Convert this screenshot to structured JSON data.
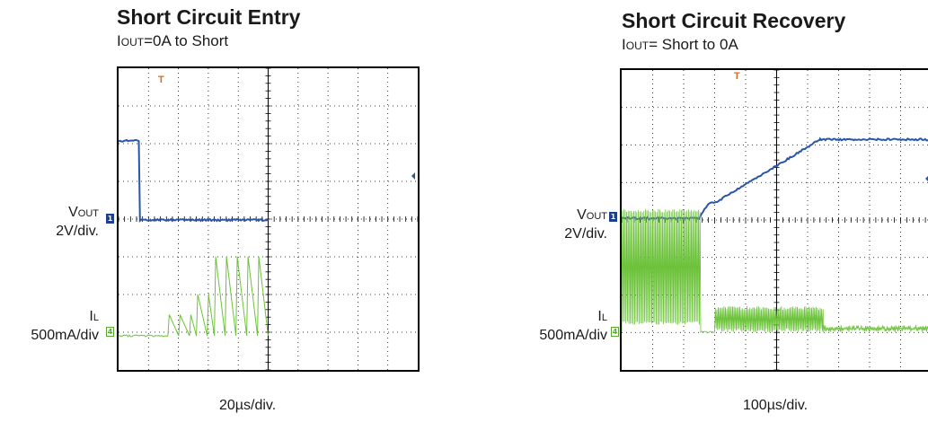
{
  "panels": [
    {
      "title": "Short Circuit Entry",
      "subtitle_i": "I",
      "subtitle_sub": "OUT",
      "subtitle_rest": "=0A to Short",
      "vout_label_main": "V",
      "vout_label_sub": "OUT",
      "vout_scale": "2V/div.",
      "il_label_main": "I",
      "il_label_sub": "L",
      "il_scale": "500mA/div",
      "timebase": "20µs/div.",
      "ch1_marker": "1",
      "ch4_marker": "4",
      "trigger_marker": "T"
    },
    {
      "title": "Short Circuit Recovery",
      "subtitle_i": "I",
      "subtitle_sub": "OUT",
      "subtitle_rest": "= Short to 0A",
      "vout_label_main": "V",
      "vout_label_sub": "OUT",
      "vout_scale": "2V/div.",
      "il_label_main": "I",
      "il_label_sub": "L",
      "il_scale": "500mA/div",
      "timebase": "100µs/div.",
      "ch1_marker": "1",
      "ch4_marker": "4",
      "trigger_marker": "T"
    }
  ],
  "colors": {
    "vout": "#2a56a8",
    "il": "#6cc23a",
    "trigger": "#e06a1f",
    "grid": "#000000"
  },
  "chart_data": [
    {
      "type": "line",
      "title": "Short Circuit Entry",
      "subtitle": "IOUT=0A to Short",
      "x_unit": "µs",
      "x_scale_per_div": 20,
      "x_divisions": 10,
      "series": [
        {
          "name": "VOUT",
          "scale": "2V/div.",
          "units": "V",
          "x": [
            0,
            14,
            14.3,
            100
          ],
          "y": [
            4.2,
            4.2,
            0,
            0
          ]
        },
        {
          "name": "IL",
          "scale": "500mA/div",
          "units": "A",
          "pattern": "sawtooth ripple",
          "segments": [
            {
              "x_start": 0,
              "x_end": 33,
              "amplitude_A": 0.0
            },
            {
              "x_start": 33,
              "x_end": 52,
              "amplitude_A": 0.28
            },
            {
              "x_start": 52,
              "x_end": 64,
              "amplitude_A": 0.55
            },
            {
              "x_start": 64,
              "x_end": 100,
              "amplitude_A": 1.05
            }
          ]
        }
      ]
    },
    {
      "type": "line",
      "title": "Short Circuit Recovery",
      "subtitle": "IOUT= Short to 0A",
      "x_unit": "µs",
      "x_scale_per_div": 100,
      "x_divisions": 10,
      "series": [
        {
          "name": "VOUT",
          "scale": "2V/div.",
          "units": "V",
          "x": [
            0,
            250,
            280,
            300,
            640,
            1000
          ],
          "y": [
            0,
            0,
            0.8,
            0.8,
            4.2,
            4.2
          ]
        },
        {
          "name": "IL",
          "scale": "500mA/div",
          "units": "A",
          "pattern": "dense switching",
          "segments": [
            {
              "x_start": 0,
              "x_end": 255,
              "amplitude_A": 1.5
            },
            {
              "x_start": 255,
              "x_end": 300,
              "amplitude_A": 0.0
            },
            {
              "x_start": 300,
              "x_end": 650,
              "amplitude_A": 0.3
            },
            {
              "x_start": 650,
              "x_end": 1000,
              "amplitude_A": 0.05
            }
          ]
        }
      ]
    }
  ]
}
